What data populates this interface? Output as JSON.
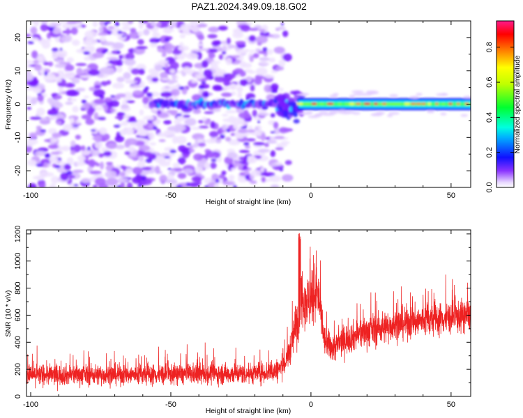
{
  "chart_data": [
    {
      "type": "heatmap",
      "title": "PAZ1.2024.349.09.18.G02",
      "xlabel": "Height of straight line (km)",
      "ylabel": "Frequency (Hz)",
      "xlim": [
        -101.5,
        57
      ],
      "ylim": [
        -25,
        25
      ],
      "x_ticks": [
        -100,
        -50,
        0,
        50
      ],
      "y_ticks": [
        -20,
        -10,
        0,
        10,
        20
      ],
      "colorbar": {
        "label": "Normalized spectral amplitude",
        "ticks": [
          "0.0",
          "0.2",
          "0.4",
          "0.6",
          "0.8"
        ],
        "range": [
          0,
          0.95
        ],
        "colormap": "rainbow (white/purple low → blue → cyan → green → yellow → orange → red → magenta high)"
      },
      "features": {
        "noise_region_km": [
          -101.5,
          -10
        ],
        "signal_line_freq_hz": 0,
        "signal_start_km": -57,
        "strong_signal_start_km": -5,
        "bending_disturbance_km": [
          -12,
          -3
        ]
      }
    },
    {
      "type": "line",
      "xlabel": "Height of straight line (km)",
      "ylabel": "SNR (10 * v/v)",
      "xlim": [
        -101.5,
        57
      ],
      "ylim": [
        0,
        1230
      ],
      "x_ticks": [
        -100,
        -50,
        0,
        50
      ],
      "y_ticks": [
        0,
        200,
        400,
        600,
        800,
        1000,
        1200
      ],
      "series": [
        {
          "color": "#ee2222",
          "envelope_x": [
            -101.5,
            -80,
            -60,
            -40,
            -20,
            -12,
            -9,
            -7,
            -5,
            -4,
            -3,
            -2,
            -1,
            0,
            1,
            2,
            3,
            4,
            5,
            8,
            12,
            20,
            30,
            40,
            50,
            57
          ],
          "envelope_mean": [
            160,
            160,
            160,
            165,
            170,
            190,
            250,
            380,
            560,
            680,
            750,
            720,
            700,
            690,
            760,
            780,
            700,
            520,
            400,
            360,
            420,
            480,
            530,
            560,
            580,
            600
          ],
          "envelope_spread": [
            70,
            70,
            70,
            70,
            70,
            80,
            80,
            110,
            180,
            200,
            200,
            190,
            180,
            170,
            180,
            200,
            180,
            130,
            100,
            100,
            100,
            110,
            110,
            110,
            110,
            110
          ]
        }
      ]
    }
  ]
}
